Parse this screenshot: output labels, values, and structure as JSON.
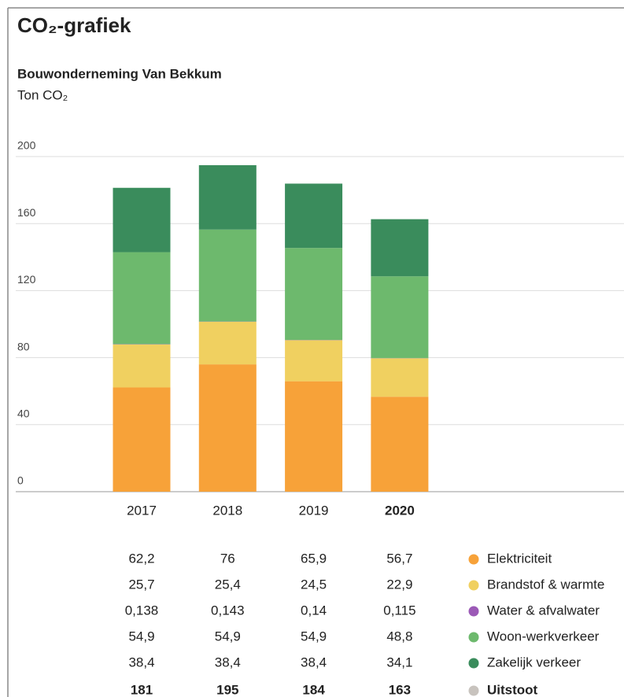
{
  "chart_data": {
    "type": "stacked_bar",
    "title": "CO₂-grafiek",
    "subtitle": "Bouwonderneming Van Bekkum",
    "y_label": "Ton CO₂",
    "categories": [
      "2017",
      "2018",
      "2019",
      "2020"
    ],
    "ylim": [
      0,
      200
    ],
    "yticks": [
      0,
      40,
      80,
      120,
      160,
      200
    ],
    "grid": true,
    "series": [
      {
        "name": "Elektriciteit",
        "color": "#f7a239",
        "values": [
          62.2,
          76,
          65.9,
          56.7
        ],
        "value_labels": [
          "62,2",
          "76",
          "65,9",
          "56,7"
        ]
      },
      {
        "name": "Brandstof & warmte",
        "color": "#f0d060",
        "values": [
          25.7,
          25.4,
          24.5,
          22.9
        ],
        "value_labels": [
          "25,7",
          "25,4",
          "24,5",
          "22,9"
        ]
      },
      {
        "name": "Water & afvalwater",
        "color": "#9b59b6",
        "values": [
          0.138,
          0.143,
          0.14,
          0.115
        ],
        "value_labels": [
          "0,138",
          "0,143",
          "0,14",
          "0,115"
        ]
      },
      {
        "name": "Woon-werkverkeer",
        "color": "#6db96d",
        "values": [
          54.9,
          54.9,
          54.9,
          48.8
        ],
        "value_labels": [
          "54,9",
          "54,9",
          "54,9",
          "48,8"
        ]
      },
      {
        "name": "Zakelijk verkeer",
        "color": "#3a8c5c",
        "values": [
          38.4,
          38.4,
          38.4,
          34.1
        ],
        "value_labels": [
          "38,4",
          "38,4",
          "38,4",
          "34,1"
        ]
      }
    ],
    "totals": {
      "name": "Uitstoot",
      "color": "#c8c3be",
      "values": [
        181,
        195,
        184,
        163
      ]
    }
  }
}
